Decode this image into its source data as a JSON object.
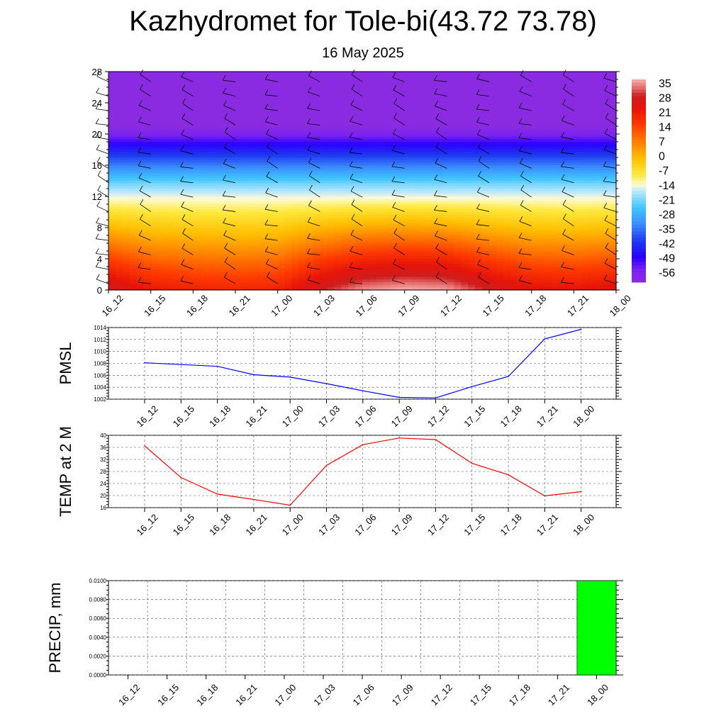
{
  "header": {
    "title": "Kazhydromet for Tole-bi(43.72 73.78)",
    "date": "16 May 2025"
  },
  "time_labels": [
    "16_12",
    "16_15",
    "16_18",
    "16_21",
    "17_00",
    "17_03",
    "17_06",
    "17_09",
    "17_12",
    "17_15",
    "17_18",
    "17_21",
    "18_00"
  ],
  "chart_data": [
    {
      "type": "heatmap",
      "ylim": [
        0,
        28
      ],
      "yticks": [
        0,
        4,
        8,
        12,
        16,
        20,
        24,
        28
      ],
      "colorbar_labels": [
        "35",
        "28",
        "21",
        "14",
        "7",
        "0",
        "-7",
        "-14",
        "-21",
        "-28",
        "-35",
        "-42",
        "-49",
        "-56"
      ],
      "colorbar_range": [
        -60,
        38
      ],
      "surface_temperature": [
        30,
        23,
        21,
        20,
        21,
        30,
        36,
        38,
        37,
        30,
        25,
        24,
        26
      ],
      "lapse_rate_per_unit": 3.4,
      "wind_barbs": true,
      "colors": [
        "#8a2be2",
        "#2a00ff",
        "#3a7fff",
        "#3ec6ff",
        "#bfe8ff",
        "#fffbd0",
        "#ffe000",
        "#ff9a00",
        "#ff3a00",
        "#d81e1e",
        "#f5a5a5"
      ]
    },
    {
      "type": "line",
      "ylabel": "PMSL",
      "ylim": [
        1002,
        1014
      ],
      "yticks": [
        1002,
        1004,
        1006,
        1008,
        1010,
        1012,
        1014
      ],
      "color": "#0000ff",
      "values": [
        1008.1,
        1007.8,
        1007.5,
        1006.1,
        1005.7,
        1004.6,
        1003.4,
        1002.3,
        1002.2,
        1004.1,
        1005.8,
        1012.1,
        1013.7
      ]
    },
    {
      "type": "line",
      "ylabel": "TEMP at 2 M",
      "ylim": [
        16,
        40
      ],
      "yticks": [
        16,
        20,
        24,
        28,
        32,
        36,
        40
      ],
      "color": "#ff0000",
      "values": [
        36.5,
        26.0,
        20.5,
        18.7,
        16.8,
        30.0,
        36.9,
        39.1,
        38.6,
        30.7,
        26.9,
        19.9,
        21.3
      ]
    },
    {
      "type": "bar",
      "ylabel": "PRECIP, mm",
      "ylim": [
        0,
        0.01
      ],
      "yticks": [
        "0.0000",
        "0.0020",
        "0.0040",
        "0.0060",
        "0.0080",
        "0.0100"
      ],
      "color": "#00ff00",
      "values": [
        0,
        0,
        0,
        0,
        0,
        0,
        0,
        0,
        0,
        0,
        0,
        0,
        0.01
      ]
    }
  ]
}
